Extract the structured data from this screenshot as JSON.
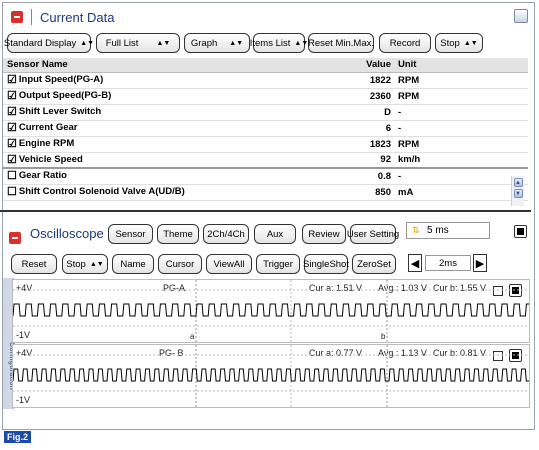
{
  "current_data": {
    "title": "Current Data",
    "toolbar": {
      "standard_display": "Standard Display",
      "full_list": "Full List",
      "graph": "Graph",
      "items_list": "Items List",
      "reset_minmax": "Reset Min.Max.",
      "record": "Record",
      "stop": "Stop"
    },
    "columns": {
      "name": "Sensor Name",
      "value": "Value",
      "unit": "Unit"
    },
    "rows": [
      {
        "checked": "☑",
        "name": "Input Speed(PG-A)",
        "value": "1822",
        "unit": "RPM"
      },
      {
        "checked": "☑",
        "name": "Output Speed(PG-B)",
        "value": "2360",
        "unit": "RPM"
      },
      {
        "checked": "☑",
        "name": "Shift Lever Switch",
        "value": "D",
        "unit": "-"
      },
      {
        "checked": "☑",
        "name": "Current Gear",
        "value": "6",
        "unit": "-"
      },
      {
        "checked": "☑",
        "name": "Engine RPM",
        "value": "1823",
        "unit": "RPM"
      },
      {
        "checked": "☑",
        "name": "Vehicle Speed",
        "value": "92",
        "unit": "km/h"
      },
      {
        "checked": "☐",
        "name": "Gear Ratio",
        "value": "0.8",
        "unit": "-"
      },
      {
        "checked": "☐",
        "name": "Shift Control Solenoid Valve A(UD/B)",
        "value": "850",
        "unit": "mA"
      }
    ]
  },
  "oscilloscope": {
    "title": "Oscilloscope",
    "buttons": {
      "sensor": "Sensor",
      "theme": "Theme",
      "channels": "2Ch/4Ch",
      "aux": "Aux",
      "review": "Review",
      "user_setting": "User Setting",
      "reset": "Reset",
      "stop": "Stop",
      "name": "Name",
      "cursor": "Cursor",
      "view_all": "ViewAll",
      "trigger": "Trigger",
      "single_shot": "SingleShot",
      "zero_set": "ZeroSet"
    },
    "time_div": "5 ms",
    "time_spin": "2ms",
    "side_label": "Configuration",
    "channels": [
      {
        "name": "PG-A",
        "vmax": "+4V",
        "vmin": "-1V",
        "cur_a": "Cur a: 1.51 V",
        "avg": "Avg : 1.03 V",
        "cur_b": "Cur b: 1.55 V",
        "marker_a": "a",
        "marker_b": "b"
      },
      {
        "name": "PG- B",
        "vmax": "+4V",
        "vmin": "-1V",
        "cur_a": "Cur a: 0.77 V",
        "avg": "Avg : 1.13 V",
        "cur_b": "Cur b: 0.81 V"
      }
    ]
  },
  "figure_label": "Fig.2"
}
